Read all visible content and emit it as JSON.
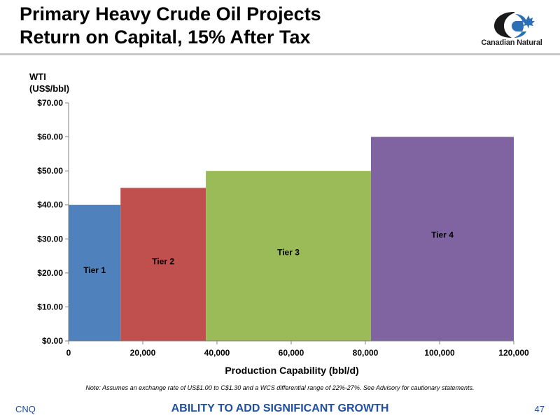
{
  "header": {
    "title_line1": "Primary Heavy Crude Oil Projects",
    "title_line2": "Return on Capital, 15% After Tax",
    "logo_text": "Canadian Natural"
  },
  "chart_data": {
    "type": "bar",
    "variant": "variable-width-step",
    "ylabel_line1": "WTI",
    "ylabel_line2": "(US$/bbl)",
    "xlabel": "Production Capability (bbl/d)",
    "xlim": [
      0,
      120000
    ],
    "ylim": [
      0,
      70
    ],
    "x_ticks": [
      0,
      20000,
      40000,
      60000,
      80000,
      100000,
      120000
    ],
    "x_tick_labels": [
      "0",
      "20,000",
      "40,000",
      "60,000",
      "80,000",
      "100,000",
      "120,000"
    ],
    "y_ticks": [
      0,
      10,
      20,
      30,
      40,
      50,
      60,
      70
    ],
    "y_tick_labels": [
      "$0.00",
      "$10.00",
      "$20.00",
      "$30.00",
      "$40.00",
      "$50.00",
      "$60.00",
      "$70.00"
    ],
    "grid": false,
    "bars": [
      {
        "label": "Tier 1",
        "x_start": 0,
        "x_end": 14000,
        "value": 40,
        "color": "#4f81bd"
      },
      {
        "label": "Tier 2",
        "x_start": 14000,
        "x_end": 37000,
        "value": 45,
        "color": "#c0504d"
      },
      {
        "label": "Tier 3",
        "x_start": 37000,
        "x_end": 81500,
        "value": 50,
        "color": "#9bbb59"
      },
      {
        "label": "Tier 4",
        "x_start": 81500,
        "x_end": 120000,
        "value": 60,
        "color": "#8064a2"
      }
    ]
  },
  "note": "Note: Assumes an exchange rate of US$1.00 to C$1.30 and a WCS differential range of 22%-27%. See Advisory for cautionary statements.",
  "footer": {
    "left": "CNQ",
    "center": "ABILITY TO ADD SIGNIFICANT GROWTH",
    "right": "47"
  },
  "colors": {
    "footer_text": "#1f4f9e",
    "header_rule": "#c8c8c8"
  }
}
